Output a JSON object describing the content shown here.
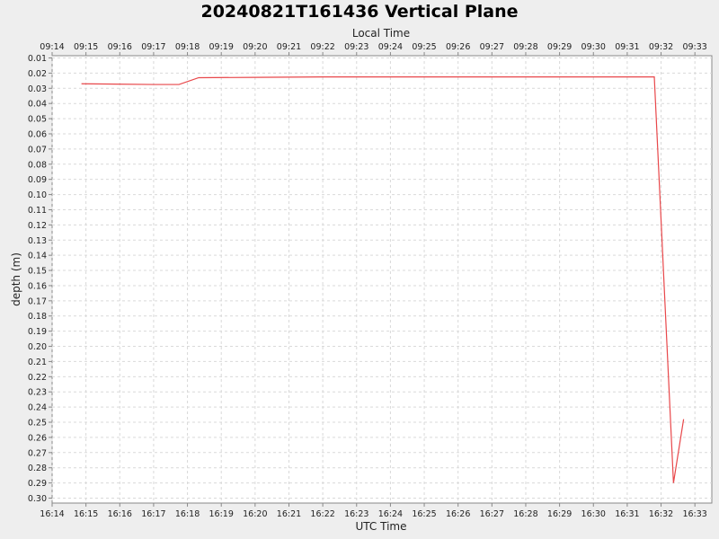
{
  "chart_data": {
    "type": "line",
    "title": "20240821T161436 Vertical Plane",
    "xlabel": "UTC Time",
    "x2label": "Local Time",
    "ylabel": "depth (m)",
    "y_inverted": true,
    "grid": true,
    "xlim": [
      "16:14",
      "16:33:30"
    ],
    "ylim": [
      0.01,
      0.3
    ],
    "x_ticks": [
      "16:14",
      "16:15",
      "16:16",
      "16:17",
      "16:18",
      "16:19",
      "16:20",
      "16:21",
      "16:22",
      "16:23",
      "16:24",
      "16:25",
      "16:26",
      "16:27",
      "16:28",
      "16:29",
      "16:30",
      "16:31",
      "16:32",
      "16:33"
    ],
    "x2_ticks": [
      "09:14",
      "09:15",
      "09:16",
      "09:17",
      "09:18",
      "09:19",
      "09:20",
      "09:21",
      "09:22",
      "09:23",
      "09:24",
      "09:25",
      "09:26",
      "09:27",
      "09:28",
      "09:29",
      "09:30",
      "09:31",
      "09:32",
      "09:33"
    ],
    "y_ticks": [
      "0.01",
      "0.02",
      "0.03",
      "0.04",
      "0.05",
      "0.06",
      "0.07",
      "0.08",
      "0.09",
      "0.10",
      "0.11",
      "0.12",
      "0.13",
      "0.14",
      "0.15",
      "0.16",
      "0.17",
      "0.18",
      "0.19",
      "0.20",
      "0.21",
      "0.22",
      "0.23",
      "0.24",
      "0.25",
      "0.26",
      "0.27",
      "0.28",
      "0.29",
      "0.30"
    ],
    "series": [
      {
        "color": "#e8474a",
        "x": [
          "16:14:52",
          "16:17:00",
          "16:17:45",
          "16:18:20",
          "16:20:00",
          "16:22:00",
          "16:31:48",
          "16:32:22",
          "16:32:40"
        ],
        "y": [
          0.027,
          0.0275,
          0.0275,
          0.023,
          0.0228,
          0.0225,
          0.0225,
          0.29,
          0.248
        ]
      }
    ]
  }
}
